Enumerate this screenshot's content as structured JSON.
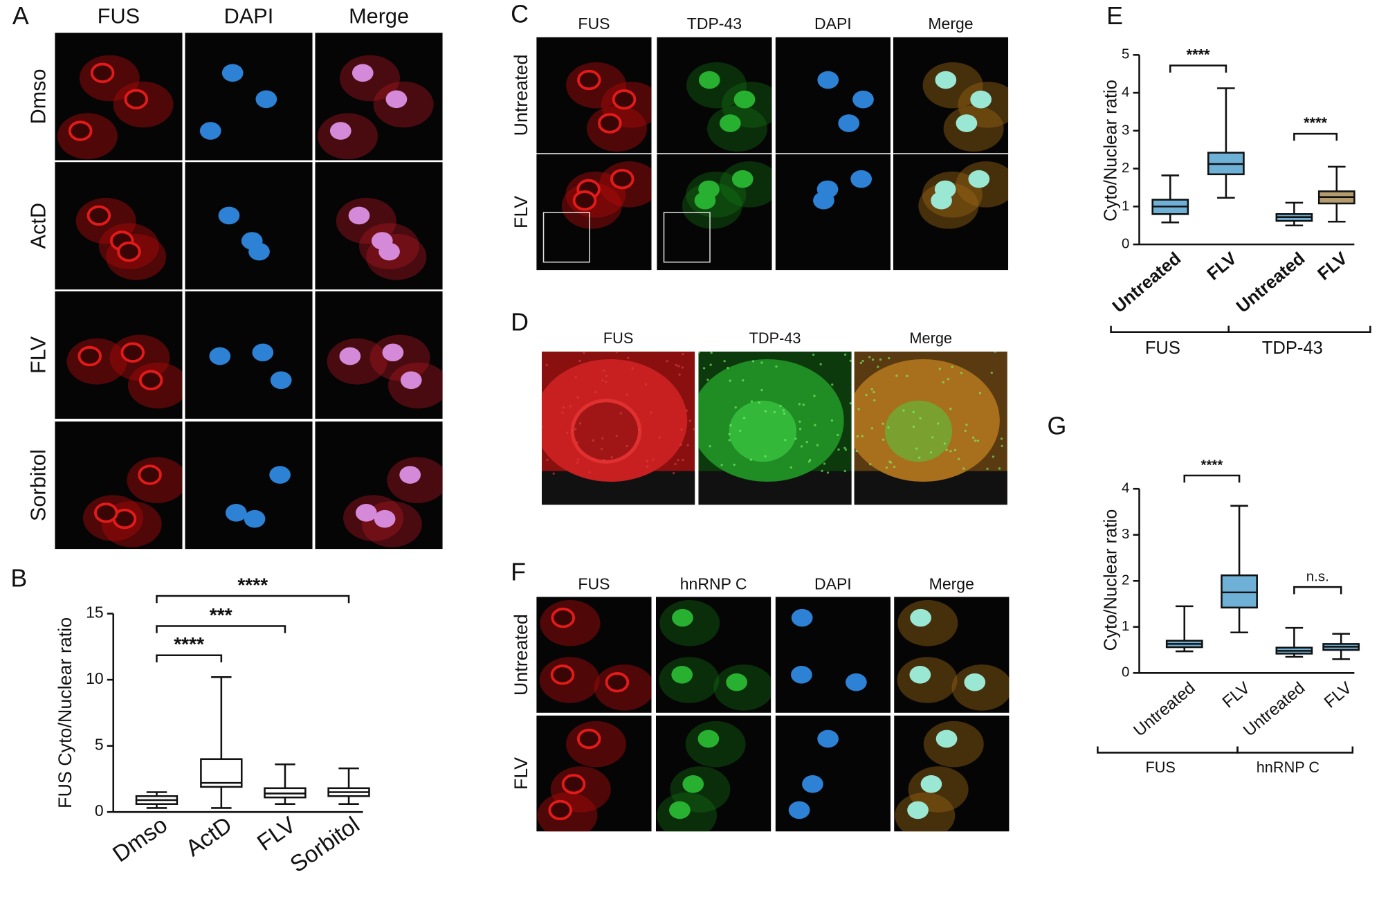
{
  "panels": [
    {
      "label": "A",
      "columns": [
        "FUS",
        "DAPI",
        "Merge"
      ],
      "rows": [
        "Dmso",
        "ActD",
        "FLV",
        "Sorbitol"
      ]
    },
    {
      "label": "C",
      "columns": [
        "FUS",
        "TDP-43",
        "DAPI",
        "Merge"
      ],
      "rows": [
        "Untreated",
        "FLV"
      ]
    },
    {
      "label": "D",
      "columns": [
        "FUS",
        "TDP-43",
        "Merge"
      ]
    },
    {
      "label": "F",
      "columns": [
        "FUS",
        "hnRNP C",
        "DAPI",
        "Merge"
      ],
      "rows": [
        "Untreated",
        "FLV"
      ]
    }
  ],
  "chart_data": [
    {
      "type": "box",
      "panel_label": "B",
      "y_label": "FUS Cyto/Nuclear ratio",
      "categories": [
        "Dmso",
        "ActD",
        "FLV",
        "Sorbitol"
      ],
      "boxes": [
        {
          "min": 0.3,
          "q1": 0.6,
          "median": 0.9,
          "q3": 1.2,
          "max": 1.5
        },
        {
          "min": 0.3,
          "q1": 1.9,
          "median": 2.2,
          "q3": 4.0,
          "max": 10.2
        },
        {
          "min": 0.6,
          "q1": 1.1,
          "median": 1.4,
          "q3": 1.8,
          "max": 3.6
        },
        {
          "min": 0.6,
          "q1": 1.2,
          "median": 1.5,
          "q3": 1.8,
          "max": 3.3
        }
      ],
      "colors": [
        "#ffffff",
        "#ffffff",
        "#ffffff",
        "#ffffff"
      ],
      "ylim": [
        0,
        15
      ],
      "yticks": [
        0,
        5,
        10,
        15
      ],
      "comparisons": [
        {
          "between": [
            0,
            1
          ],
          "label": "****"
        },
        {
          "between": [
            0,
            2
          ],
          "label": "***"
        },
        {
          "between": [
            0,
            3
          ],
          "label": "****"
        }
      ]
    },
    {
      "type": "box",
      "panel_label": "E",
      "y_label": "Cyto/Nuclear ratio",
      "bold_categories": true,
      "categories": [
        "Untreated",
        "FLV",
        "Untreated",
        "FLV"
      ],
      "boxes": [
        {
          "min": 0.58,
          "q1": 0.8,
          "median": 1.0,
          "q3": 1.18,
          "max": 1.82
        },
        {
          "min": 1.23,
          "q1": 1.85,
          "median": 2.12,
          "q3": 2.42,
          "max": 4.12
        },
        {
          "min": 0.5,
          "q1": 0.62,
          "median": 0.72,
          "q3": 0.8,
          "max": 1.1
        },
        {
          "min": 0.6,
          "q1": 1.08,
          "median": 1.25,
          "q3": 1.4,
          "max": 2.05
        }
      ],
      "colors": [
        "#6fb1d6",
        "#6fb1d6",
        "#6fb1d6",
        "#b59c6e"
      ],
      "ylim": [
        0,
        5
      ],
      "yticks": [
        0,
        1,
        2,
        3,
        4,
        5
      ],
      "comparisons": [
        {
          "between": [
            0,
            1
          ],
          "label": "****"
        },
        {
          "between": [
            2,
            3
          ],
          "label": "****"
        }
      ],
      "groups": [
        {
          "label": "FUS",
          "between": [
            0,
            1
          ]
        },
        {
          "label": "TDP-43",
          "between": [
            2,
            3
          ]
        }
      ]
    },
    {
      "type": "box",
      "panel_label": "G",
      "y_label": "Cyto/Nuclear ratio",
      "categories": [
        "Untreated",
        "FLV",
        "Untreated",
        "FLV"
      ],
      "boxes": [
        {
          "min": 0.47,
          "q1": 0.56,
          "median": 0.63,
          "q3": 0.7,
          "max": 1.45
        },
        {
          "min": 0.88,
          "q1": 1.42,
          "median": 1.75,
          "q3": 2.12,
          "max": 3.63
        },
        {
          "min": 0.35,
          "q1": 0.42,
          "median": 0.48,
          "q3": 0.55,
          "max": 0.98
        },
        {
          "min": 0.3,
          "q1": 0.5,
          "median": 0.57,
          "q3": 0.63,
          "max": 0.85
        }
      ],
      "colors": [
        "#6fb1d6",
        "#6fb1d6",
        "#6fb1d6",
        "#6fb1d6"
      ],
      "ylim": [
        0,
        4
      ],
      "yticks": [
        0,
        1,
        2,
        3,
        4
      ],
      "comparisons": [
        {
          "between": [
            0,
            1
          ],
          "label": "****"
        },
        {
          "between": [
            2,
            3
          ],
          "label": "n.s."
        }
      ],
      "groups": [
        {
          "label": "FUS",
          "between": [
            0,
            1
          ]
        },
        {
          "label": "hnRNP C",
          "between": [
            2,
            3
          ]
        }
      ]
    }
  ]
}
